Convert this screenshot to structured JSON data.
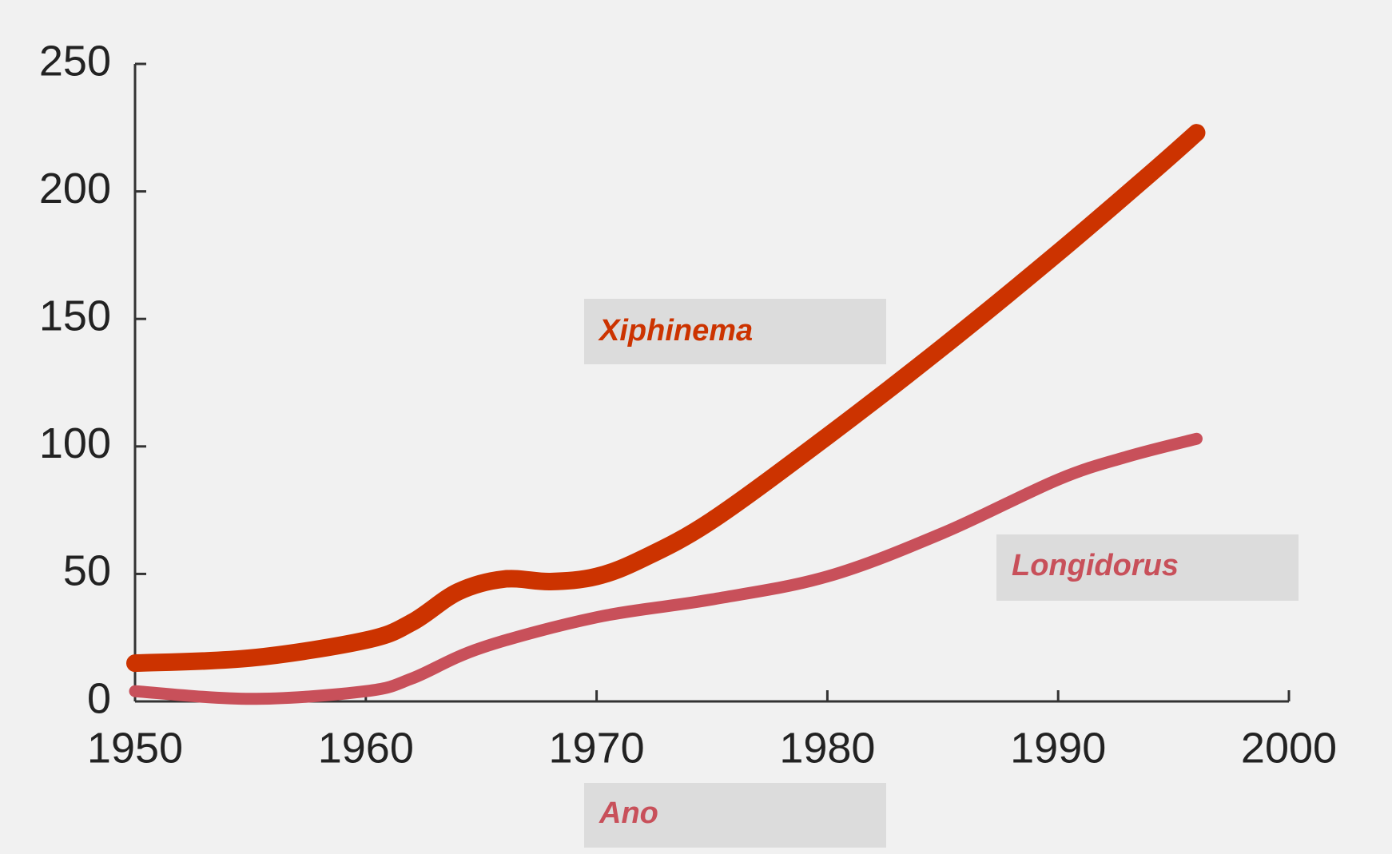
{
  "chart_data": {
    "type": "line",
    "x_label": "Ano",
    "series": [
      {
        "name": "Xiphinema",
        "color": "#cc3300",
        "x": [
          1950,
          1955,
          1960,
          1962,
          1964,
          1966,
          1968,
          1970,
          1972,
          1975,
          1980,
          1985,
          1990,
          1994,
          1996
        ],
        "values": [
          15,
          17,
          24,
          31,
          43,
          48,
          47,
          49,
          56,
          71,
          104,
          139,
          176,
          207,
          223
        ]
      },
      {
        "name": "Longidorus",
        "color": "#c8505a",
        "x": [
          1950,
          1955,
          1960,
          1962,
          1965,
          1970,
          1975,
          1980,
          1985,
          1990,
          1993,
          1996
        ],
        "values": [
          4,
          1,
          4,
          9,
          21,
          33,
          40,
          49,
          66,
          87,
          96,
          103
        ]
      }
    ],
    "xlim": [
      1950,
      2000
    ],
    "xticks": [
      1950,
      1960,
      1970,
      1980,
      1990,
      2000
    ],
    "ylim": [
      0,
      250
    ],
    "yticks": [
      0,
      50,
      100,
      150,
      200,
      250
    ]
  }
}
